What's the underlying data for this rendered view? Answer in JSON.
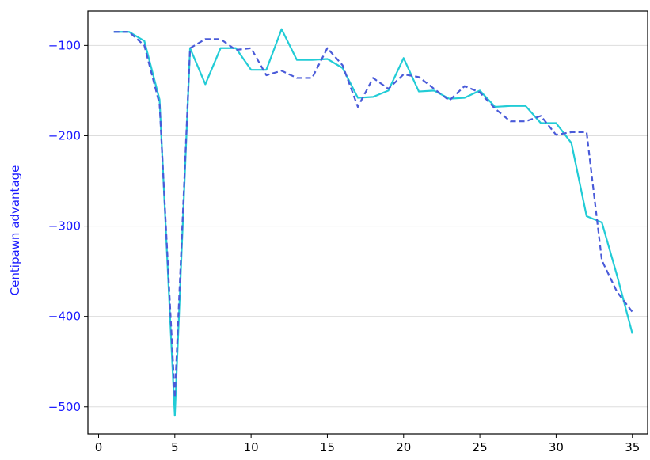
{
  "chart_data": {
    "type": "line",
    "title": "",
    "xlabel": "",
    "ylabel": "Centipawn advantage",
    "xlim": [
      -0.7,
      36.0
    ],
    "ylim": [
      -530,
      -62
    ],
    "xticks": [
      0,
      5,
      10,
      15,
      20,
      25,
      30,
      35
    ],
    "yticks": [
      -100,
      -200,
      -300,
      -400,
      -500
    ],
    "xtick_labels": [
      "0",
      "5",
      "10",
      "15",
      "20",
      "25",
      "30",
      "35"
    ],
    "ytick_labels": [
      "−100",
      "−200",
      "−300",
      "−400",
      "−500"
    ],
    "grid": "horizontal",
    "legend": "none",
    "colors": {
      "solid_series": "#22ccd6",
      "dashed_series": "#4a5bd9",
      "ylabel": "#1a1aff",
      "ytick_labels": "#1a1aff",
      "xtick_labels": "#000000",
      "grid": "#dddddd"
    },
    "series": [
      {
        "style": "solid",
        "x": [
          1,
          2,
          3,
          4,
          5,
          6,
          7,
          8,
          9,
          10,
          11,
          12,
          13,
          14,
          15,
          16,
          17,
          18,
          19,
          20,
          21,
          22,
          23,
          24,
          25,
          26,
          27,
          28,
          29,
          30,
          31,
          32,
          33,
          34,
          35
        ],
        "values": [
          -85,
          -85,
          -95,
          -160,
          -510,
          -103,
          -143,
          -103,
          -103,
          -127,
          -127,
          -82,
          -116,
          -116,
          -115,
          -125,
          -158,
          -157,
          -150,
          -114,
          -151,
          -150,
          -159,
          -158,
          -150,
          -168,
          -167,
          -167,
          -186,
          -186,
          -208,
          -289,
          -296,
          -355,
          -419
        ]
      },
      {
        "style": "dashed",
        "x": [
          1,
          2,
          3,
          4,
          5,
          6,
          7,
          8,
          9,
          10,
          11,
          12,
          13,
          14,
          15,
          16,
          17,
          18,
          19,
          20,
          21,
          22,
          23,
          24,
          25,
          26,
          27,
          28,
          29,
          30,
          31,
          32,
          33,
          34,
          35
        ],
        "values": [
          -85,
          -85,
          -100,
          -165,
          -490,
          -103,
          -93,
          -93,
          -105,
          -103,
          -133,
          -128,
          -136,
          -136,
          -103,
          -122,
          -168,
          -136,
          -148,
          -132,
          -135,
          -148,
          -161,
          -145,
          -152,
          -170,
          -184,
          -184,
          -178,
          -199,
          -196,
          -196,
          -338,
          -373,
          -395
        ]
      }
    ]
  }
}
